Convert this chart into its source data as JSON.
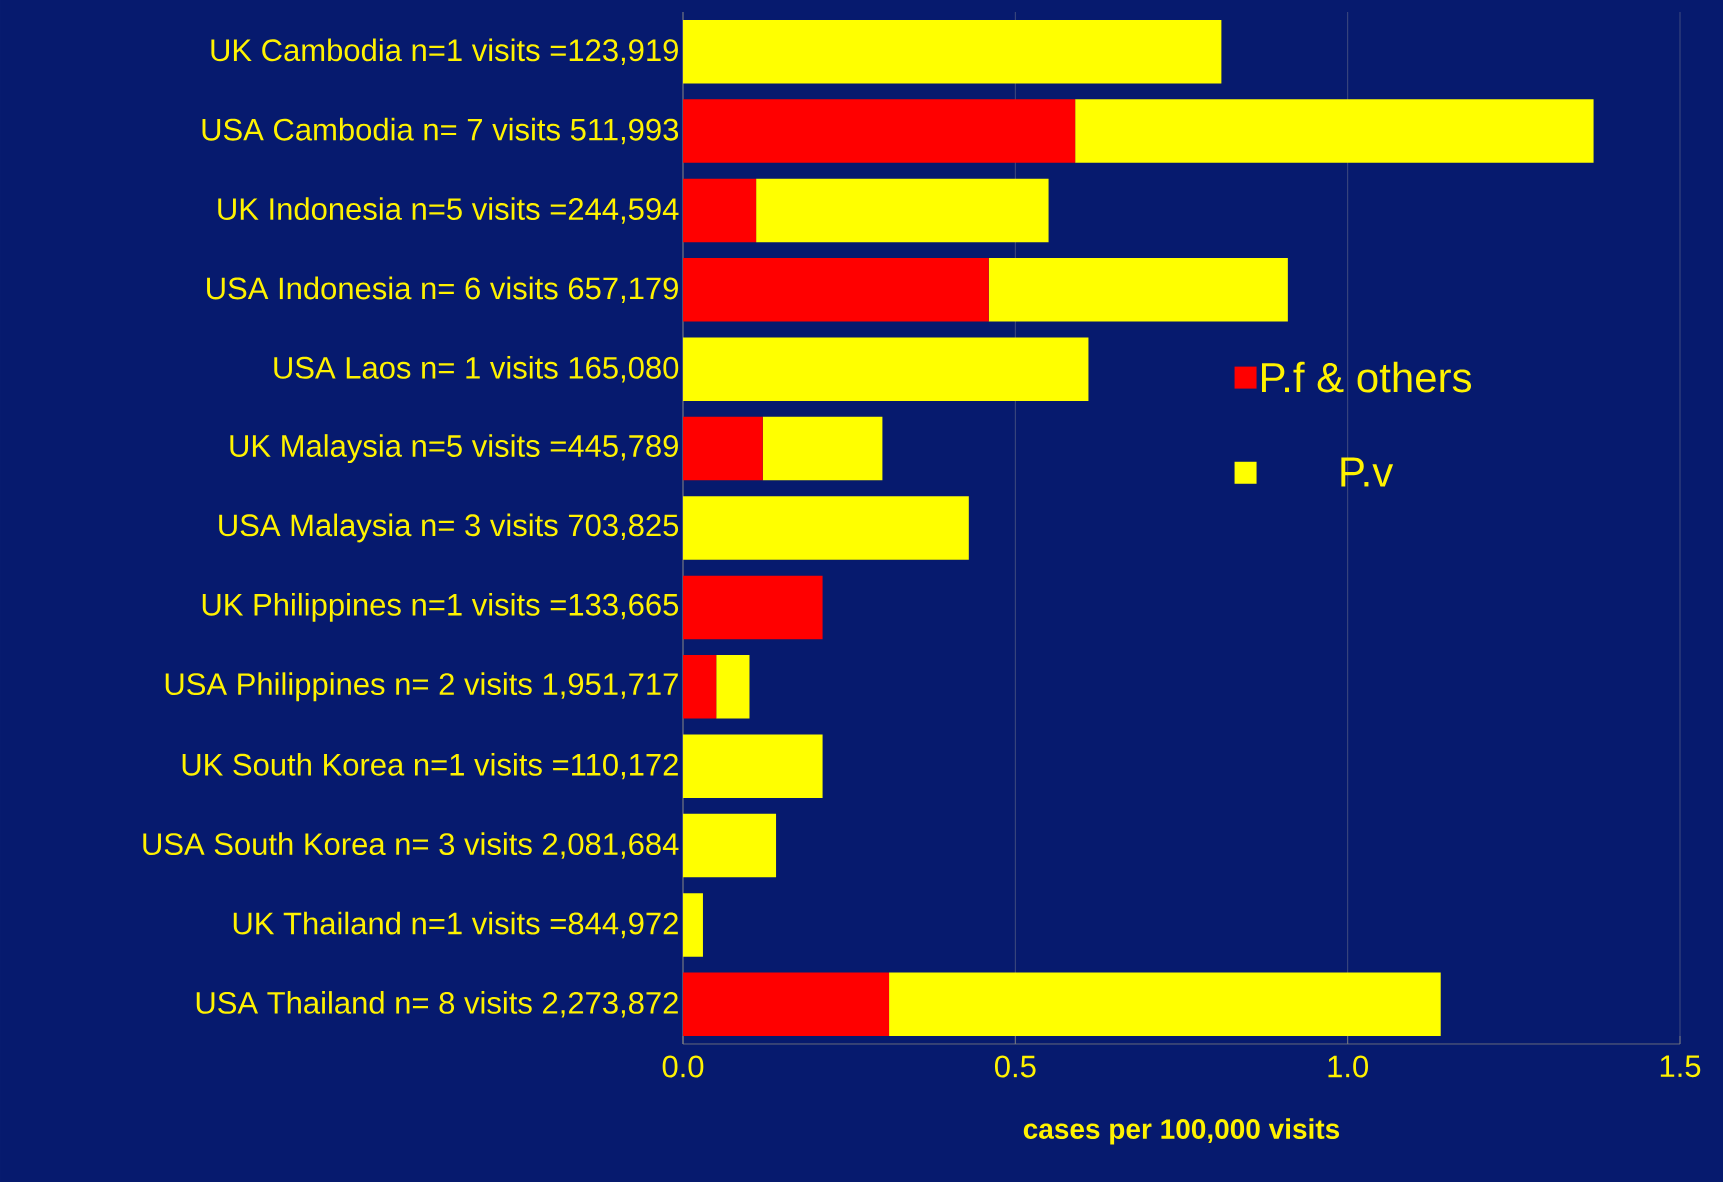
{
  "chart_data": {
    "type": "bar",
    "orientation": "horizontal",
    "stacked": true,
    "xlabel": "cases per 100,000 visits",
    "categories": [
      "UK Cambodia n=1 visits =123,919",
      "USA Cambodia n= 7 visits 511,993",
      "UK Indonesia n=5 visits =244,594",
      "USA Indonesia n= 6 visits 657,179",
      "USA Laos n= 1 visits 165,080",
      "UK Malaysia n=5 visits =445,789",
      "USA Malaysia n= 3 visits 703,825",
      "UK Philippines n=1 visits =133,665",
      "USA Philippines n= 2 visits 1,951,717",
      "UK South Korea  n=1 visits =110,172",
      "USA South Korea n= 3 visits 2,081,684",
      "UK Thailand n=1 visits =844,972",
      "USA Thailand n= 8 visits 2,273,872"
    ],
    "series": [
      {
        "name": "P.f & others",
        "color": "#ff0000",
        "values": [
          0,
          0.59,
          0.11,
          0.46,
          0,
          0.12,
          0,
          0.21,
          0.05,
          0,
          0,
          0,
          0.31
        ]
      },
      {
        "name": "P.v",
        "color": "#ffff00",
        "values": [
          0.81,
          0.78,
          0.44,
          0.45,
          0.61,
          0.18,
          0.43,
          0,
          0.05,
          0.21,
          0.14,
          0.03,
          0.83
        ]
      }
    ],
    "xlim": [
      0,
      1.5
    ],
    "xticks": [
      {
        "value": 0,
        "label": "0.0"
      },
      {
        "value": 0.5,
        "label": "0.5"
      },
      {
        "value": 1,
        "label": "1.0"
      },
      {
        "value": 1.5,
        "label": "1.5"
      }
    ],
    "grid": "x",
    "legend": "right"
  }
}
